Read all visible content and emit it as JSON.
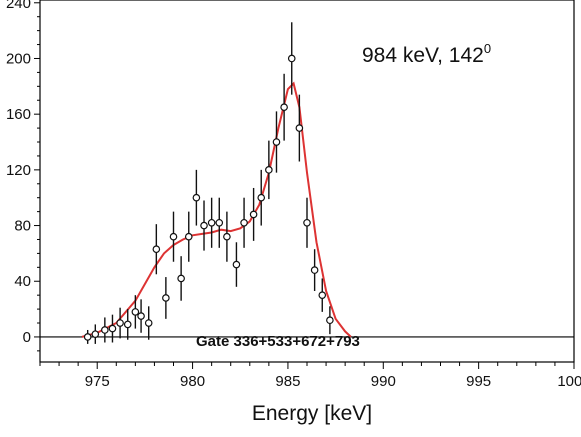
{
  "chart_data": {
    "type": "scatter",
    "xlabel": "Energy [keV]",
    "xlim": [
      972,
      1000
    ],
    "ylim": [
      -18,
      242
    ],
    "x_ticks": [
      975,
      980,
      985,
      990,
      995,
      1000
    ],
    "x_tick_labels": [
      "975",
      "980",
      "985",
      "990",
      "995",
      "1000"
    ],
    "y_ticks": [
      0,
      40,
      80,
      120,
      160,
      200,
      240
    ],
    "y_tick_labels": [
      "0",
      "40",
      "80",
      "120",
      "160",
      "200",
      "240"
    ],
    "annotation": "984 keV, 142",
    "annotation_superscript": "0",
    "gate_label": "Gate 336+533+672+793",
    "grid": false,
    "colors": {
      "fit": "#dd3333",
      "data": "#111111",
      "frame": "#000000"
    },
    "series": [
      {
        "kind": "data_points",
        "points": [
          {
            "x": 974.5,
            "y": 0,
            "err": 5
          },
          {
            "x": 974.9,
            "y": 2,
            "err": 7
          },
          {
            "x": 975.4,
            "y": 5,
            "err": 9
          },
          {
            "x": 975.8,
            "y": 6,
            "err": 10
          },
          {
            "x": 976.2,
            "y": 10,
            "err": 11
          },
          {
            "x": 976.6,
            "y": 9,
            "err": 11
          },
          {
            "x": 977.0,
            "y": 18,
            "err": 12
          },
          {
            "x": 977.3,
            "y": 15,
            "err": 12
          },
          {
            "x": 977.7,
            "y": 10,
            "err": 12
          },
          {
            "x": 978.1,
            "y": 63,
            "err": 18
          },
          {
            "x": 978.6,
            "y": 28,
            "err": 15
          },
          {
            "x": 979.0,
            "y": 72,
            "err": 18
          },
          {
            "x": 979.4,
            "y": 42,
            "err": 16
          },
          {
            "x": 979.8,
            "y": 72,
            "err": 18
          },
          {
            "x": 980.2,
            "y": 100,
            "err": 20
          },
          {
            "x": 980.6,
            "y": 80,
            "err": 18
          },
          {
            "x": 981.0,
            "y": 82,
            "err": 18
          },
          {
            "x": 981.4,
            "y": 82,
            "err": 18
          },
          {
            "x": 981.8,
            "y": 72,
            "err": 18
          },
          {
            "x": 982.3,
            "y": 52,
            "err": 16
          },
          {
            "x": 982.7,
            "y": 82,
            "err": 18
          },
          {
            "x": 983.2,
            "y": 88,
            "err": 19
          },
          {
            "x": 983.6,
            "y": 100,
            "err": 20
          },
          {
            "x": 984.0,
            "y": 120,
            "err": 21
          },
          {
            "x": 984.4,
            "y": 140,
            "err": 22
          },
          {
            "x": 984.8,
            "y": 165,
            "err": 24
          },
          {
            "x": 985.2,
            "y": 200,
            "err": 26
          },
          {
            "x": 985.6,
            "y": 150,
            "err": 24
          },
          {
            "x": 986.0,
            "y": 82,
            "err": 18
          },
          {
            "x": 986.4,
            "y": 48,
            "err": 15
          },
          {
            "x": 986.8,
            "y": 30,
            "err": 12
          },
          {
            "x": 987.2,
            "y": 12,
            "err": 10
          }
        ]
      },
      {
        "kind": "fit_line",
        "x": [
          974.2,
          975.0,
          976.0,
          977.0,
          977.5,
          978.0,
          978.5,
          979.0,
          979.5,
          980.0,
          980.5,
          981.0,
          981.5,
          982.0,
          982.5,
          983.0,
          983.5,
          984.0,
          984.5,
          985.0,
          985.3,
          985.6,
          986.0,
          986.5,
          987.0,
          987.5,
          988.0,
          988.3
        ],
        "y": [
          0,
          3,
          10,
          26,
          38,
          50,
          60,
          66,
          70,
          73,
          74,
          75,
          77,
          76,
          78,
          83,
          95,
          118,
          150,
          178,
          182,
          165,
          118,
          68,
          33,
          13,
          4,
          0
        ]
      }
    ]
  }
}
